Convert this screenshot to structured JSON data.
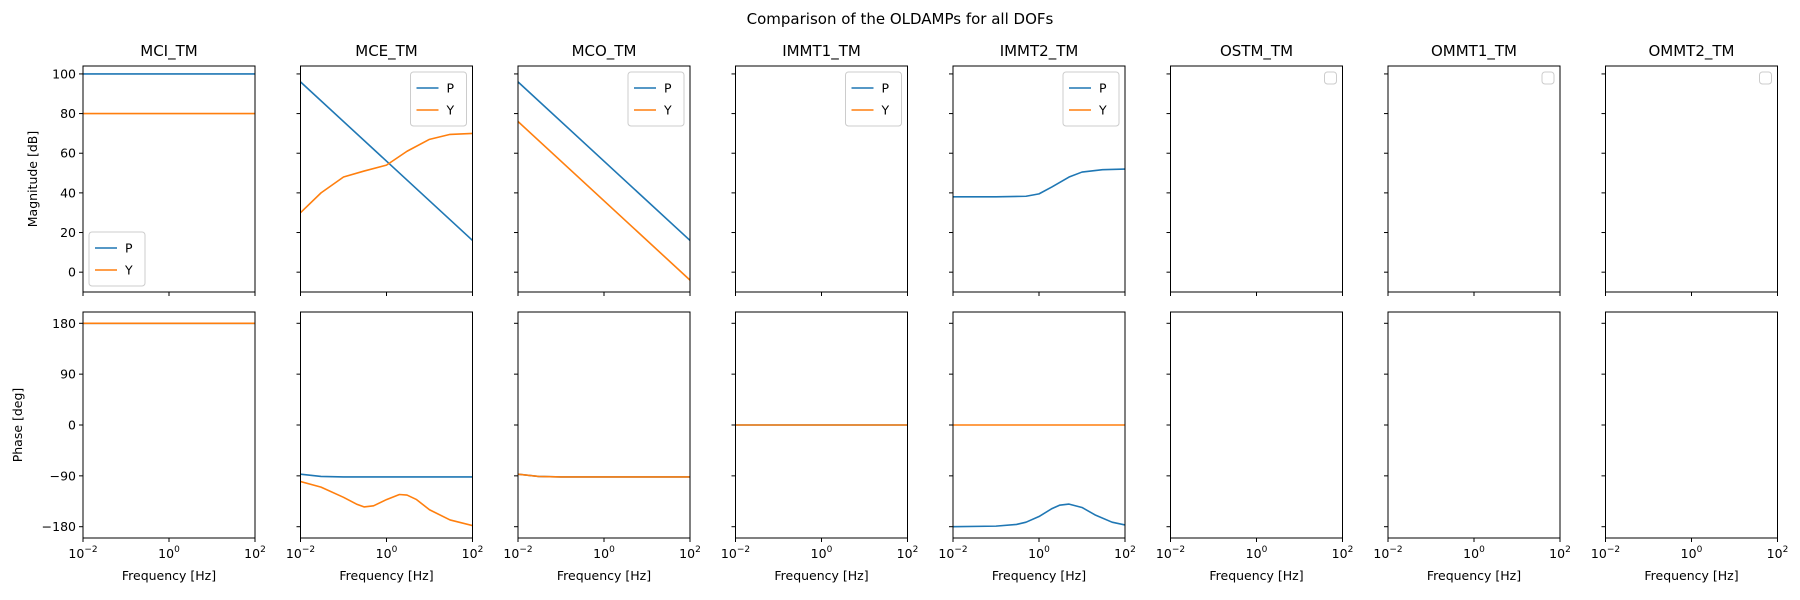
{
  "chart_data": {
    "type": "line",
    "title": "Comparison of the OLDAMPs for all DOFs",
    "xlabel": "Frequency [Hz]",
    "xscale": "log",
    "xlim": [
      0.01,
      100
    ],
    "x_ticks": [
      0.01,
      1,
      100
    ],
    "x_tick_base": "10",
    "x_tick_exps": [
      "−2",
      "0",
      "2"
    ],
    "rows": [
      {
        "ylabel": "Magnitude [dB]",
        "ylim": [
          -10,
          104
        ],
        "yticks": [
          0,
          20,
          40,
          60,
          80,
          100
        ],
        "ytick_labels": [
          "0",
          "20",
          "40",
          "60",
          "80",
          "100"
        ]
      },
      {
        "ylabel": "Phase [deg]",
        "ylim": [
          -200,
          200
        ],
        "yticks": [
          -180,
          -90,
          0,
          90,
          180
        ],
        "ytick_labels": [
          "−180",
          "−90",
          "0",
          "90",
          "180"
        ]
      }
    ],
    "series_colors": {
      "P": "#1f77b4",
      "Y": "#ff7f0e"
    },
    "columns": [
      {
        "title": "MCI_TM",
        "legend": {
          "entries": [
            "P",
            "Y"
          ],
          "position": "lower-left"
        },
        "magnitude": {
          "P": {
            "x": [
              0.01,
              100
            ],
            "y": [
              100,
              100
            ]
          },
          "Y": {
            "x": [
              0.01,
              100
            ],
            "y": [
              80,
              80
            ]
          }
        },
        "phase": {
          "P": {
            "x": [
              0.01,
              100
            ],
            "y": [
              180,
              180
            ]
          },
          "Y": {
            "x": [
              0.01,
              100
            ],
            "y": [
              180,
              180
            ]
          }
        }
      },
      {
        "title": "MCE_TM",
        "legend": {
          "entries": [
            "P",
            "Y"
          ],
          "position": "upper-right"
        },
        "magnitude": {
          "P": {
            "x": [
              0.01,
              100
            ],
            "y": [
              96,
              16
            ]
          },
          "Y": {
            "x": [
              0.01,
              0.03,
              0.1,
              0.3,
              1,
              3,
              10,
              30,
              100
            ],
            "y": [
              30,
              40,
              48,
              51,
              54,
              61,
              67,
              69.5,
              70
            ]
          }
        },
        "phase": {
          "P": {
            "x": [
              0.01,
              0.03,
              0.1,
              1,
              10,
              100
            ],
            "y": [
              -87,
              -91,
              -92,
              -92,
              -92,
              -92
            ]
          },
          "Y": {
            "x": [
              0.01,
              0.03,
              0.1,
              0.2,
              0.3,
              0.5,
              1,
              2,
              3,
              5,
              10,
              30,
              100
            ],
            "y": [
              -100,
              -110,
              -128,
              -140,
              -145,
              -143,
              -132,
              -123,
              -124,
              -132,
              -150,
              -168,
              -178
            ]
          }
        }
      },
      {
        "title": "MCO_TM",
        "legend": {
          "entries": [
            "P",
            "Y"
          ],
          "position": "upper-right"
        },
        "magnitude": {
          "P": {
            "x": [
              0.01,
              100
            ],
            "y": [
              96,
              16
            ]
          },
          "Y": {
            "x": [
              0.01,
              100
            ],
            "y": [
              76,
              -4
            ]
          }
        },
        "phase": {
          "P": {
            "x": [
              0.01,
              0.03,
              0.1,
              1,
              100
            ],
            "y": [
              -87,
              -91,
              -92,
              -92,
              -92
            ]
          },
          "Y": {
            "x": [
              0.01,
              0.03,
              0.1,
              1,
              100
            ],
            "y": [
              -87,
              -91,
              -92,
              -92,
              -92
            ]
          }
        }
      },
      {
        "title": "IMMT1_TM",
        "legend": {
          "entries": [
            "P",
            "Y"
          ],
          "position": "upper-right"
        },
        "magnitude": {},
        "phase": {
          "P": {
            "x": [
              0.01,
              100
            ],
            "y": [
              0,
              0
            ]
          },
          "Y": {
            "x": [
              0.01,
              100
            ],
            "y": [
              0,
              0
            ]
          }
        }
      },
      {
        "title": "IMMT2_TM",
        "legend": {
          "entries": [
            "P",
            "Y"
          ],
          "position": "upper-right"
        },
        "magnitude": {
          "P": {
            "x": [
              0.01,
              0.1,
              0.5,
              1,
              2,
              5,
              10,
              30,
              100
            ],
            "y": [
              38,
              38,
              38.3,
              39.5,
              43,
              48,
              50.5,
              51.7,
              52
            ]
          }
        },
        "phase": {
          "P": {
            "x": [
              0.01,
              0.1,
              0.3,
              0.5,
              1,
              2,
              3,
              5,
              10,
              20,
              50,
              100
            ],
            "y": [
              -180,
              -179,
              -176,
              -172,
              -162,
              -148,
              -142,
              -140,
              -146,
              -159,
              -172,
              -177
            ]
          },
          "Y": {
            "x": [
              0.01,
              100
            ],
            "y": [
              0,
              0
            ]
          }
        }
      },
      {
        "title": "OSTM_TM",
        "legend": {
          "entries": [],
          "position": "upper-right"
        },
        "magnitude": {},
        "phase": {}
      },
      {
        "title": "OMMT1_TM",
        "legend": {
          "entries": [],
          "position": "upper-right"
        },
        "magnitude": {},
        "phase": {}
      },
      {
        "title": "OMMT2_TM",
        "legend": {
          "entries": [],
          "position": "upper-right"
        },
        "magnitude": {},
        "phase": {}
      }
    ]
  }
}
